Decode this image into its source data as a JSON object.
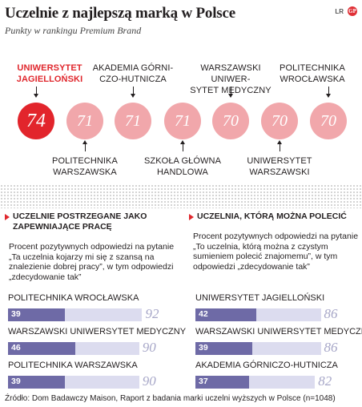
{
  "header": {
    "title": "Uczelnie z najlepszą marką w Polsce",
    "subtitle": "Punkty w rankingu Premium Brand",
    "brand_text": "LR",
    "brand_logo": "GP"
  },
  "chart_data": [
    {
      "type": "bubble",
      "title": "Uczelnie z najlepszą marką w Polsce",
      "subtitle": "Punkty w rankingu Premium Brand",
      "highlight_color": "#e2252c",
      "base_color": "#f1a7ab",
      "items": [
        {
          "name": "UNIWERSYTET\nJAGIELLOŃSKI",
          "value": 74,
          "label_pos": "top",
          "highlight": true
        },
        {
          "name": "POLITECHNIKA\nWARSZAWSKA",
          "value": 71,
          "label_pos": "bottom",
          "highlight": false
        },
        {
          "name": "AKADEMIA GÓRNI-\nCZO-HUTNICZA",
          "value": 71,
          "label_pos": "top",
          "highlight": false
        },
        {
          "name": "SZKOŁA GŁÓWNA\nHANDLOWA",
          "value": 71,
          "label_pos": "bottom",
          "highlight": false
        },
        {
          "name": "WARSZAWSKI UNIWER-\nSYTET MEDYCZNY",
          "value": 70,
          "label_pos": "top",
          "highlight": false
        },
        {
          "name": "UNIWERSYTET\nWARSZAWSKI",
          "value": 70,
          "label_pos": "bottom",
          "highlight": false
        },
        {
          "name": "POLITECHNIKA\nWROCŁAWSKA",
          "value": 70,
          "label_pos": "top",
          "highlight": false
        }
      ]
    },
    {
      "type": "bar",
      "title": "Uczelnie postrzegane jako zapewniające pracę",
      "description": "Procent pozytywnych odpowiedzi na pytanie „Ta uczelnia kojarzy mi się z szansą na znalezienie dobrej pracy”, w tym odpowiedzi „zdecydowanie tak”",
      "categories": [
        "POLITECHNIKA WROCŁAWSKA",
        "WARSZAWSKI UNIWERSYTET MEDYCZNY",
        "POLITECHNIKA WARSZAWSKA"
      ],
      "series": [
        {
          "name": "zdecydowanie tak",
          "values": [
            39,
            46,
            39
          ],
          "color": "#6e6aa6"
        },
        {
          "name": "",
          "values": [
            92,
            90,
            90
          ],
          "color": "#dcdcef"
        }
      ],
      "ylim": [
        0,
        100
      ]
    },
    {
      "type": "bar",
      "title": "Uczelnia, którą można polecić",
      "description": "Procent pozytywnych odpowiedzi na pytanie „To uczelnia, którą można z czystym sumieniem polecić znajomemu”, w tym odpowiedzi „zdecydowanie tak”",
      "categories": [
        "UNIWERSYTET JAGIELLOŃSKI",
        "WARSZAWSKI UNIWERSYTET MEDYCZNY",
        "AKADEMIA GÓRNICZO-HUTNICZA"
      ],
      "series": [
        {
          "name": "zdecydowanie tak",
          "values": [
            42,
            39,
            37
          ],
          "color": "#6e6aa6"
        },
        {
          "name": "",
          "values": [
            86,
            86,
            82
          ],
          "color": "#dcdcef"
        }
      ],
      "ylim": [
        0,
        100
      ]
    }
  ],
  "panels": {
    "left": {
      "heading": "Uczelnie postrzegane jako zapewniające pracę",
      "description": "Procent pozytywnych odpowiedzi na pytanie „Ta uczelnia kojarzy mi się z szansą na znalezienie dobrej pracy”, w tym odpowiedzi „zdecydowanie tak”"
    },
    "right": {
      "heading": "Uczelnia, którą można polecić",
      "description": "Procent pozytywnych odpowiedzi na pytanie „To uczelnia, którą można z czystym sumieniem polecić znajomemu”, w tym odpowiedzi „zdecydowanie tak”"
    }
  },
  "source": "Źródło: Dom Badawczy Maison, Raport z badania marki uczelni wyższych w Polsce (n=1048)"
}
